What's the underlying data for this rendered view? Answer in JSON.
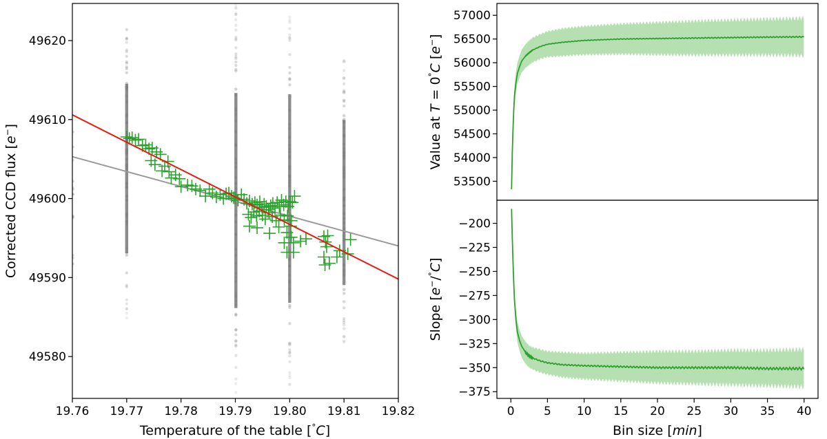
{
  "colors": {
    "scatter_gray": "#808080",
    "cross_green": "#2ca02c",
    "fit_red": "#e8190e",
    "fit_gray": "#999999",
    "band_green": "#b6e0b2",
    "line_green": "#2ca02c"
  },
  "chart_data": [
    {
      "type": "scatter",
      "xlabel": "Temperature of the table [°C]",
      "xlabel_parts": [
        "Temperature of the table [",
        "°",
        "C",
        "]"
      ],
      "ylabel": "Corrected CCD flux [e⁻]",
      "ylabel_parts": [
        "Corrected CCD flux [",
        "e",
        "−",
        "]"
      ],
      "xlim": [
        19.76,
        19.82
      ],
      "ylim": [
        49574.7,
        49624.7
      ],
      "xticks": [
        "19.76",
        "19.77",
        "19.78",
        "19.79",
        "19.80",
        "19.81",
        "19.82"
      ],
      "yticks": [
        "49580",
        "49590",
        "49600",
        "49610",
        "49620"
      ],
      "raw_columns": [
        {
          "x": 19.77,
          "ymin": 49584.3,
          "ymax": 49623.3
        },
        {
          "x": 19.7901,
          "ymin": 49575.0,
          "ymax": 49624.5
        },
        {
          "x": 19.8,
          "ymin": 49576.0,
          "ymax": 49624.0
        },
        {
          "x": 19.81,
          "ymin": 49580.5,
          "ymax": 49618.5
        }
      ],
      "fit_lines": [
        {
          "color": "red",
          "x": [
            19.76,
            19.82
          ],
          "y": [
            49610.6,
            49589.8
          ]
        },
        {
          "color": "gray",
          "x": [
            19.76,
            19.82
          ],
          "y": [
            49605.3,
            49594.0
          ]
        }
      ],
      "binned_points": [
        [
          19.77,
          49607.8
        ],
        [
          19.7705,
          49607.6
        ],
        [
          19.771,
          49607.7
        ],
        [
          19.7716,
          49607.4
        ],
        [
          19.7722,
          49607.5
        ],
        [
          19.7729,
          49606.7
        ],
        [
          19.7735,
          49606.8
        ],
        [
          19.7741,
          49606.3
        ],
        [
          19.7747,
          49606.4
        ],
        [
          19.7755,
          49605.9
        ],
        [
          19.7762,
          49605.6
        ],
        [
          19.7745,
          49604.8
        ],
        [
          19.7752,
          49604.3
        ],
        [
          19.777,
          49604.1
        ],
        [
          19.7778,
          49603.4
        ],
        [
          19.7765,
          49603.5
        ],
        [
          19.7782,
          49602.6
        ],
        [
          19.779,
          49603.0
        ],
        [
          19.7797,
          49602.5
        ],
        [
          19.7776,
          49604.7
        ],
        [
          19.78,
          49601.5
        ],
        [
          19.7812,
          49601.7
        ],
        [
          19.782,
          49601.6
        ],
        [
          19.7827,
          49601.2
        ],
        [
          19.7835,
          49601.0
        ],
        [
          19.7845,
          49600.3
        ],
        [
          19.7852,
          49601.2
        ],
        [
          19.7858,
          49600.7
        ],
        [
          19.7865,
          49600.2
        ],
        [
          19.7872,
          49600.5
        ],
        [
          19.7878,
          49600.0
        ],
        [
          19.7883,
          49600.6
        ],
        [
          19.7888,
          49600.7
        ],
        [
          19.7893,
          49600.3
        ],
        [
          19.7897,
          49600.1
        ],
        [
          19.79,
          49600.0
        ],
        [
          19.7905,
          49599.8
        ],
        [
          19.7911,
          49600.5
        ],
        [
          19.7916,
          49599.9
        ],
        [
          19.7921,
          49599.4
        ],
        [
          19.7926,
          49599.7
        ],
        [
          19.7931,
          49599.3
        ],
        [
          19.7936,
          49599.5
        ],
        [
          19.794,
          49599.2
        ],
        [
          19.7945,
          49599.6
        ],
        [
          19.7949,
          49598.9
        ],
        [
          19.7953,
          49599.3
        ],
        [
          19.7957,
          49599.0
        ],
        [
          19.7961,
          49598.6
        ],
        [
          19.7965,
          49599.1
        ],
        [
          19.7969,
          49599.4
        ],
        [
          19.7973,
          49598.8
        ],
        [
          19.7977,
          49599.5
        ],
        [
          19.7981,
          49599.0
        ],
        [
          19.7985,
          49599.8
        ],
        [
          19.7989,
          49599.2
        ],
        [
          19.7993,
          49599.6
        ],
        [
          19.7997,
          49599.0
        ],
        [
          19.8001,
          49599.6
        ],
        [
          19.8005,
          49599.5
        ],
        [
          19.8009,
          49600.3
        ],
        [
          19.7924,
          49598.0
        ],
        [
          19.7929,
          49597.6
        ],
        [
          19.7934,
          49598.3
        ],
        [
          19.7939,
          49597.8
        ],
        [
          19.7944,
          49598.4
        ],
        [
          19.795,
          49597.9
        ],
        [
          19.7955,
          49597.4
        ],
        [
          19.7962,
          49598.2
        ],
        [
          19.7968,
          49597.7
        ],
        [
          19.7975,
          49597.2
        ],
        [
          19.7983,
          49597.9
        ],
        [
          19.799,
          49597.3
        ],
        [
          19.7996,
          49597.8
        ],
        [
          19.8003,
          49597.2
        ],
        [
          19.7926,
          49596.5
        ],
        [
          19.794,
          49596.3
        ],
        [
          19.798,
          49596.4
        ],
        [
          19.8002,
          49596.5
        ],
        [
          19.7963,
          49595.6
        ],
        [
          19.7995,
          49595.7
        ],
        [
          19.8003,
          49595.1
        ],
        [
          19.8007,
          49594.4
        ],
        [
          19.799,
          49594.4
        ],
        [
          19.8007,
          49593.2
        ],
        [
          19.7995,
          49593.2
        ],
        [
          19.802,
          49594.6
        ],
        [
          19.803,
          49594.9
        ],
        [
          19.8063,
          49595.2
        ],
        [
          19.807,
          49595.3
        ],
        [
          19.8066,
          49594.5
        ],
        [
          19.8068,
          49593.9
        ],
        [
          19.8063,
          49592.6
        ],
        [
          19.8065,
          49591.6
        ],
        [
          19.8073,
          49591.8
        ],
        [
          19.8087,
          49592.6
        ],
        [
          19.8092,
          49593.4
        ],
        [
          19.8107,
          49593.0
        ],
        [
          19.8112,
          49594.8
        ]
      ]
    },
    {
      "type": "area",
      "xlabel": "",
      "ylabel": "Value at T = 0°C [e⁻]",
      "ylabel_parts": [
        "Value at ",
        "T",
        " = 0",
        "°",
        "C",
        " [",
        "e",
        "−",
        "]"
      ],
      "xlim": [
        -1.9,
        41.9
      ],
      "ylim": [
        53100,
        57250
      ],
      "xticks": [],
      "yticks": [
        "53500",
        "54000",
        "54500",
        "55000",
        "55500",
        "56000",
        "56500",
        "57000"
      ],
      "series": [
        {
          "name": "",
          "x": [
            0.1,
            0.2,
            0.3,
            0.4,
            0.5,
            0.7,
            0.9,
            1.2,
            1.5,
            2.0,
            2.5,
            3.0,
            4.0,
            5.0,
            7.0,
            10.0,
            15.0,
            20.0,
            25.0,
            30.0,
            35.0,
            40.0
          ],
          "values": [
            53330,
            54100,
            54600,
            55000,
            55300,
            55580,
            55780,
            55920,
            56040,
            56140,
            56210,
            56270,
            56340,
            56390,
            56430,
            56470,
            56500,
            56510,
            56520,
            56530,
            56540,
            56545
          ],
          "upper": [
            53400,
            54200,
            54750,
            55150,
            55500,
            55800,
            56000,
            56150,
            56280,
            56390,
            56470,
            56530,
            56600,
            56660,
            56720,
            56770,
            56820,
            56850,
            56880,
            56900,
            56920,
            56940
          ],
          "lower": [
            53260,
            54000,
            54450,
            54850,
            55100,
            55360,
            55560,
            55690,
            55800,
            55890,
            55950,
            56010,
            56080,
            56120,
            56140,
            56170,
            56180,
            56170,
            56160,
            56160,
            56160,
            56150
          ]
        }
      ]
    },
    {
      "type": "area",
      "xlabel": "Bin size [min]",
      "xlabel_parts": [
        "Bin size [",
        "min",
        "]"
      ],
      "ylabel": "Slope [e⁻/°C]",
      "ylabel_parts": [
        "Slope [",
        "e",
        "−",
        "/",
        "°",
        "C",
        "]"
      ],
      "xlim": [
        -1.9,
        41.9
      ],
      "ylim": [
        -382,
        -176
      ],
      "xticks": [
        "0",
        "5",
        "10",
        "15",
        "20",
        "25",
        "30",
        "35",
        "40"
      ],
      "yticks": [
        "-200",
        "-225",
        "-250",
        "-275",
        "-300",
        "-325",
        "-350",
        "-375"
      ],
      "series": [
        {
          "name": "",
          "x": [
            0.1,
            0.2,
            0.3,
            0.4,
            0.5,
            0.7,
            0.9,
            1.2,
            1.5,
            2.0,
            2.5,
            3.0,
            4.0,
            5.0,
            7.0,
            10.0,
            15.0,
            20.0,
            25.0,
            30.0,
            35.0,
            40.0
          ],
          "values": [
            -185,
            -215,
            -240,
            -262,
            -280,
            -300,
            -313,
            -322,
            -328,
            -334,
            -338,
            -340,
            -343,
            -345,
            -347,
            -348,
            -349,
            -350,
            -350,
            -350,
            -351,
            -351
          ],
          "upper": [
            -184,
            -213,
            -236,
            -256,
            -272,
            -290,
            -302,
            -311,
            -317,
            -323,
            -327,
            -329,
            -331,
            -333,
            -334,
            -335,
            -334,
            -333,
            -333,
            -332,
            -332,
            -331
          ],
          "lower": [
            -187,
            -217,
            -244,
            -268,
            -288,
            -310,
            -324,
            -333,
            -340,
            -346,
            -350,
            -352,
            -355,
            -357,
            -360,
            -362,
            -364,
            -366,
            -367,
            -368,
            -369,
            -370
          ]
        }
      ]
    }
  ]
}
